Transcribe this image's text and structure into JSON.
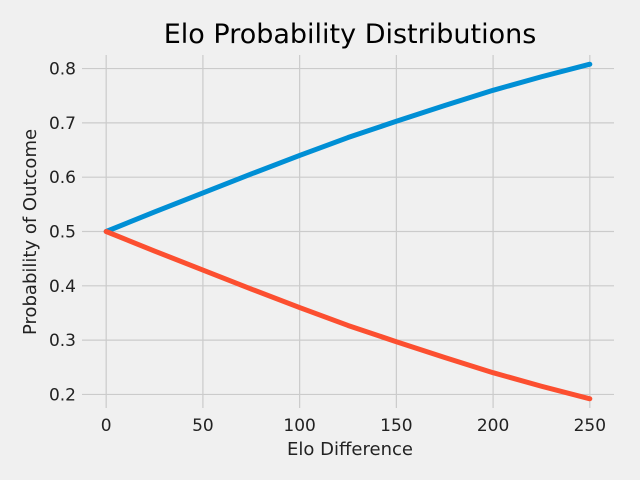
{
  "chart_data": {
    "type": "line",
    "title": "Elo Probability Distributions",
    "xlabel": "Elo Difference",
    "ylabel": "Probability of Outcome",
    "xlim": [
      -12.5,
      262.5
    ],
    "ylim": [
      0.175,
      0.825
    ],
    "xticks": [
      0,
      50,
      100,
      150,
      200,
      250
    ],
    "yticks": [
      0.2,
      0.3,
      0.4,
      0.5,
      0.6,
      0.7,
      0.8
    ],
    "grid": true,
    "x": [
      0,
      25,
      50,
      75,
      100,
      125,
      150,
      175,
      200,
      225,
      250
    ],
    "series": [
      {
        "color": "#008fd5",
        "values": [
          0.5,
          0.536,
          0.571,
          0.606,
          0.64,
          0.673,
          0.703,
          0.732,
          0.76,
          0.785,
          0.808
        ]
      },
      {
        "color": "#fc4f30",
        "values": [
          0.5,
          0.464,
          0.429,
          0.394,
          0.36,
          0.327,
          0.297,
          0.268,
          0.24,
          0.215,
          0.192
        ]
      }
    ]
  }
}
